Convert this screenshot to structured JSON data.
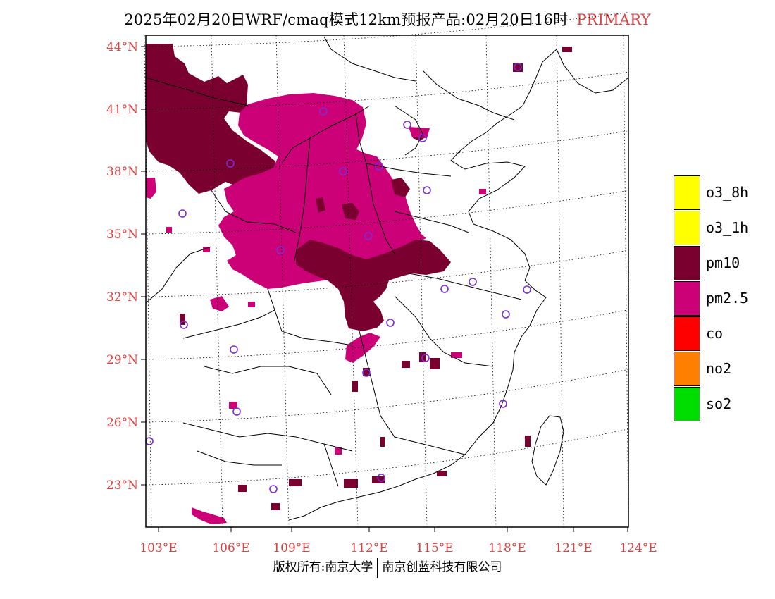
{
  "title": {
    "text": "2025年02月20日WRF/cmaq模式12km预报产品:02月20日16时",
    "tag": "PRIMARY"
  },
  "axes": {
    "lat_labels": [
      "44°N",
      "41°N",
      "38°N",
      "35°N",
      "32°N",
      "29°N",
      "26°N",
      "23°N"
    ],
    "lon_labels": [
      "103°E",
      "106°E",
      "109°E",
      "112°E",
      "115°E",
      "118°E",
      "121°E",
      "124°E"
    ],
    "label_color": "#e04040"
  },
  "legend": {
    "items": [
      {
        "label": "o3_8h",
        "color": "#ffff00"
      },
      {
        "label": "o3_1h",
        "color": "#ffff00"
      },
      {
        "label": "pm10",
        "color": "#7a0030"
      },
      {
        "label": "pm2.5",
        "color": "#cc0077"
      },
      {
        "label": "co",
        "color": "#ff0000"
      },
      {
        "label": "no2",
        "color": "#ff7f00"
      },
      {
        "label": "so2",
        "color": "#00dd00"
      }
    ]
  },
  "footer": {
    "left": "版权所有:南京大学",
    "right": "南京创蓝科技有限公司"
  },
  "colors": {
    "pm10": "#7a0030",
    "pm25": "#cc0077",
    "station_marker": "#7a2cd6"
  }
}
